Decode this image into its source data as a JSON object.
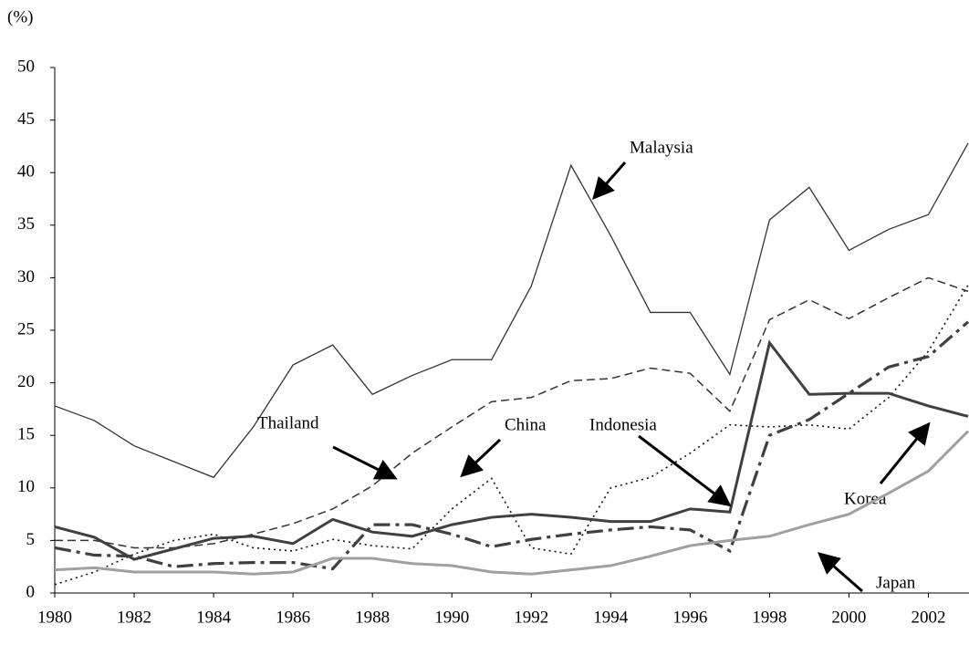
{
  "chart_data": {
    "type": "line",
    "y_label": "(%)",
    "x": [
      1980,
      1981,
      1982,
      1983,
      1984,
      1985,
      1986,
      1987,
      1988,
      1989,
      1990,
      1991,
      1992,
      1993,
      1994,
      1995,
      1996,
      1997,
      1998,
      1999,
      2000,
      2001,
      2002,
      2003
    ],
    "series": [
      {
        "name": "Malaysia",
        "color": "#333333",
        "values": [
          17.8,
          16.4,
          14.0,
          12.5,
          11.0,
          15.8,
          21.7,
          23.6,
          18.9,
          20.7,
          22.2,
          22.2,
          29.2,
          40.7,
          34.0,
          26.7,
          26.7,
          20.8,
          35.5,
          38.6,
          32.6,
          34.6,
          36.0,
          42.8
        ]
      },
      {
        "name": "Thailand",
        "color": "#333333",
        "values": [
          5.0,
          5.0,
          4.3,
          4.3,
          4.7,
          5.6,
          6.6,
          8.0,
          10.2,
          13.3,
          15.8,
          18.2,
          18.6,
          20.2,
          20.4,
          21.4,
          20.9,
          17.3,
          26.0,
          27.9,
          26.1,
          28.1,
          30.0,
          28.7
        ]
      },
      {
        "name": "China",
        "color": "#111111",
        "values": [
          0.8,
          2.0,
          3.7,
          5.0,
          5.6,
          4.3,
          4.0,
          5.1,
          4.5,
          4.2,
          8.0,
          10.9,
          4.3,
          3.7,
          10.0,
          11.0,
          13.3,
          16.0,
          15.8,
          16.0,
          15.6,
          18.6,
          23.0,
          29.3
        ]
      },
      {
        "name": "Indonesia",
        "color": "#404040",
        "values": [
          6.3,
          5.3,
          3.2,
          4.2,
          5.2,
          5.4,
          4.7,
          7.0,
          5.8,
          5.4,
          6.5,
          7.2,
          7.5,
          7.2,
          6.8,
          6.8,
          8.0,
          7.7,
          23.8,
          18.9,
          19.0,
          19.0,
          17.8,
          16.8
        ]
      },
      {
        "name": "Korea",
        "color": "#404040",
        "values": [
          4.3,
          3.6,
          3.5,
          2.5,
          2.8,
          2.9,
          2.9,
          2.3,
          6.5,
          6.5,
          5.6,
          4.4,
          5.1,
          5.6,
          6.0,
          6.3,
          6.0,
          4.0,
          15.0,
          16.5,
          19.0,
          21.5,
          22.5,
          25.8
        ]
      },
      {
        "name": "Japan",
        "color": "#a0a0a0",
        "values": [
          2.2,
          2.4,
          2.0,
          2.0,
          2.0,
          1.8,
          2.0,
          3.3,
          3.3,
          2.8,
          2.6,
          2.0,
          1.8,
          2.2,
          2.6,
          3.5,
          4.5,
          5.0,
          5.4,
          6.5,
          7.5,
          9.5,
          11.6,
          15.4
        ]
      }
    ],
    "xlim": [
      1980,
      2003
    ],
    "xticks": [
      1980,
      1982,
      1984,
      1986,
      1988,
      1990,
      1992,
      1994,
      1996,
      1998,
      2000,
      2002
    ],
    "ylim": [
      0,
      50
    ],
    "yticks": [
      0,
      5,
      10,
      15,
      20,
      25,
      30,
      35,
      40,
      45,
      50
    ],
    "grid": false
  }
}
